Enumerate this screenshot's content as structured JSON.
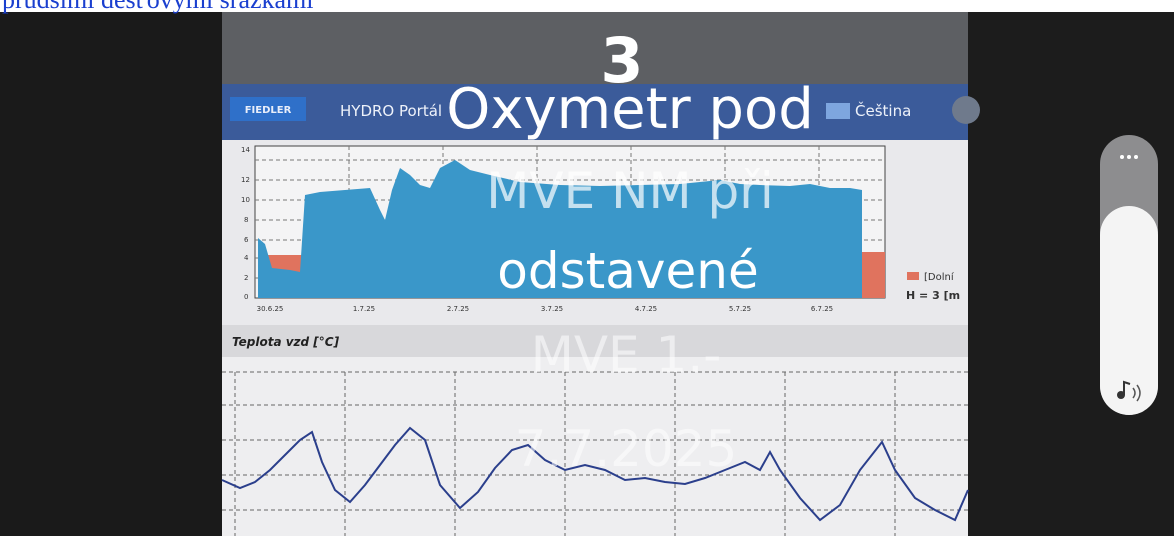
{
  "caption": "prudšími dešťovými srážkami",
  "overlay": {
    "number": "3",
    "lines": [
      "Oxymetr pod",
      "MVE NM při",
      "odstavené",
      "MVE 1.-",
      "7.7.2025"
    ]
  },
  "photo": {
    "header": {
      "logo": "FIEDLER",
      "app": "HYDRO Portál",
      "language": "Čeština"
    },
    "level_chart": {
      "x_labels": [
        "30.6.25",
        "1.7.25",
        "2.7.25",
        "3.7.25",
        "4.7.25",
        "5.7.25",
        "6.7.25"
      ],
      "y_labels": [
        "0",
        "2",
        "4",
        "6",
        "8",
        "10",
        "12",
        "14"
      ],
      "legend": [
        "[Dolní",
        "H = 3 [m"
      ]
    },
    "temp_chart": {
      "title": "Teplota vzd [°C]"
    }
  }
}
